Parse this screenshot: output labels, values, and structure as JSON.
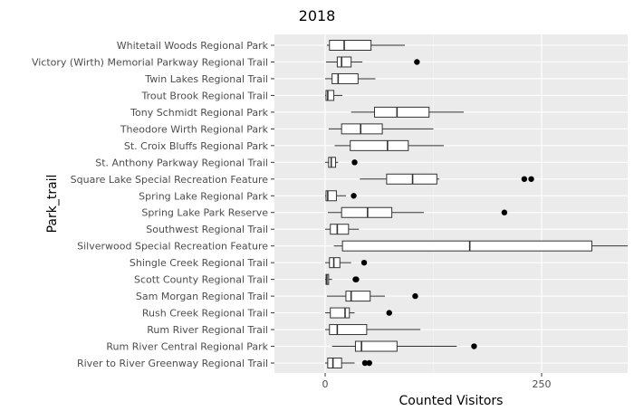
{
  "chart_data": {
    "type": "boxplot",
    "orientation": "horizontal",
    "title": "2018",
    "xlabel": "Counted Visitors",
    "ylabel": "Park_trail",
    "xlim": [
      -60,
      350
    ],
    "x_ticks": [
      0,
      250
    ],
    "x_tick_labels": [
      "0",
      "250"
    ],
    "grid": true,
    "colors": {
      "panel": "#ebebeb",
      "grid_major": "#ffffff",
      "grid_minor": "#f5f5f5",
      "box_fill": "#ffffff",
      "box_stroke": "#333333",
      "outlier": "#000000",
      "axis_text": "#4d4d4d",
      "title_text": "#000000"
    },
    "categories": [
      {
        "label": "Whitetail Woods Regional Park",
        "whisker_low": 2,
        "q1": 5,
        "median": 22,
        "q3": 53,
        "whisker_high": 92,
        "outliers": []
      },
      {
        "label": "Victory (Wirth) Memorial Parkway Regional Trail",
        "whisker_low": 1,
        "q1": 14,
        "median": 19,
        "q3": 30,
        "whisker_high": 43,
        "outliers": [
          106
        ]
      },
      {
        "label": "Twin Lakes Regional Trail",
        "whisker_low": 0,
        "q1": 8,
        "median": 15,
        "q3": 38,
        "whisker_high": 58,
        "outliers": []
      },
      {
        "label": "Trout Brook Regional Trail",
        "whisker_low": 0,
        "q1": 1,
        "median": 3,
        "q3": 10,
        "whisker_high": 20,
        "outliers": []
      },
      {
        "label": "Tony Schmidt Regional Park",
        "whisker_low": 30,
        "q1": 57,
        "median": 83,
        "q3": 120,
        "whisker_high": 160,
        "outliers": []
      },
      {
        "label": "Theodore Wirth Regional Park",
        "whisker_low": 4,
        "q1": 19,
        "median": 41,
        "q3": 66,
        "whisker_high": 125,
        "outliers": []
      },
      {
        "label": "St. Croix Bluffs Regional Park",
        "whisker_low": 11,
        "q1": 29,
        "median": 72,
        "q3": 96,
        "whisker_high": 137,
        "outliers": []
      },
      {
        "label": "St. Anthony Parkway Regional Trail",
        "whisker_low": 0,
        "q1": 4,
        "median": 7,
        "q3": 12,
        "whisker_high": 15,
        "outliers": [
          34
        ]
      },
      {
        "label": "Square Lake Special Recreation Feature",
        "whisker_low": 40,
        "q1": 71,
        "median": 101,
        "q3": 129,
        "whisker_high": 132,
        "outliers": [
          230,
          238
        ]
      },
      {
        "label": "Spring Lake Regional Park",
        "whisker_low": 0,
        "q1": 1,
        "median": 3,
        "q3": 13,
        "whisker_high": 24,
        "outliers": [
          33
        ]
      },
      {
        "label": "Spring Lake Park Reserve",
        "whisker_low": 3,
        "q1": 19,
        "median": 49,
        "q3": 77,
        "whisker_high": 114,
        "outliers": [
          207
        ]
      },
      {
        "label": "Southwest Regional Trail",
        "whisker_low": 0,
        "q1": 6,
        "median": 14,
        "q3": 27,
        "whisker_high": 39,
        "outliers": []
      },
      {
        "label": "Silverwood Special Recreation Feature",
        "whisker_low": 10,
        "q1": 20,
        "median": 167,
        "q3": 308,
        "whisker_high": 350,
        "outliers": []
      },
      {
        "label": "Shingle Creek Regional Trail",
        "whisker_low": 0,
        "q1": 5,
        "median": 10,
        "q3": 17,
        "whisker_high": 30,
        "outliers": [
          45
        ]
      },
      {
        "label": "Scott County Regional Trail",
        "whisker_low": 0,
        "q1": 1,
        "median": 2,
        "q3": 4,
        "whisker_high": 8,
        "outliers": [
          35,
          36
        ]
      },
      {
        "label": "Sam Morgan Regional Trail",
        "whisker_low": 2,
        "q1": 24,
        "median": 30,
        "q3": 52,
        "whisker_high": 69,
        "outliers": [
          104
        ]
      },
      {
        "label": "Rush Creek Regional Trail",
        "whisker_low": 0,
        "q1": 6,
        "median": 23,
        "q3": 28,
        "whisker_high": 34,
        "outliers": [
          74
        ]
      },
      {
        "label": "Rum River Regional Trail",
        "whisker_low": 0,
        "q1": 5,
        "median": 14,
        "q3": 48,
        "whisker_high": 110,
        "outliers": []
      },
      {
        "label": "Rum River Central Regional Park",
        "whisker_low": 8,
        "q1": 35,
        "median": 42,
        "q3": 83,
        "whisker_high": 152,
        "outliers": [
          172
        ]
      },
      {
        "label": "River to River Greenway Regional Trail",
        "whisker_low": 0,
        "q1": 3,
        "median": 9,
        "q3": 19,
        "whisker_high": 34,
        "outliers": [
          46,
          51
        ]
      }
    ]
  }
}
